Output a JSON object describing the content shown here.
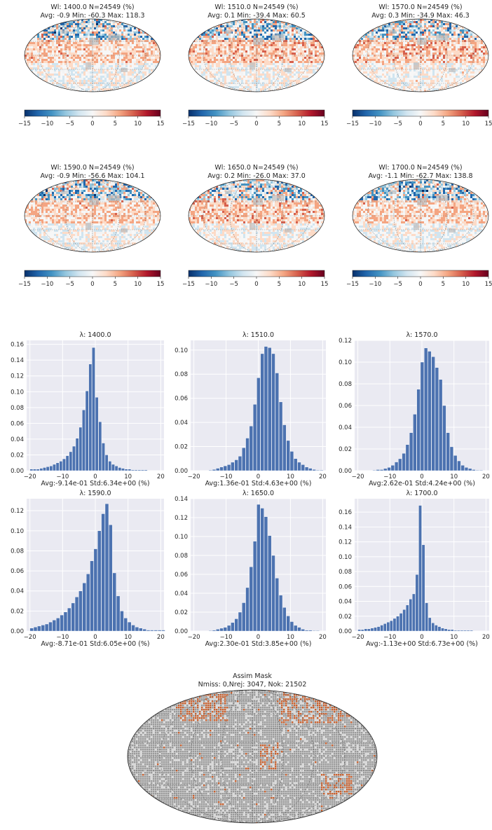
{
  "maps": [
    {
      "title_line1": "Wl: 1400.0 N=24549 (%)",
      "title_line2": "Avg: -0.9 Min: -60.3 Max: 118.3",
      "avg": -0.9,
      "min": -60.3,
      "max": 118.3
    },
    {
      "title_line1": "Wl: 1510.0 N=24549 (%)",
      "title_line2": "Avg: 0.1 Min: -39.4 Max: 60.5",
      "avg": 0.1,
      "min": -39.4,
      "max": 60.5
    },
    {
      "title_line1": "Wl: 1570.0 N=24549 (%)",
      "title_line2": "Avg: 0.3 Min: -34.9 Max: 46.3",
      "avg": 0.3,
      "min": -34.9,
      "max": 46.3
    },
    {
      "title_line1": "Wl: 1590.0 N=24549 (%)",
      "title_line2": "Avg: -0.9 Min: -56.6 Max: 104.1",
      "avg": -0.9,
      "min": -56.6,
      "max": 104.1
    },
    {
      "title_line1": "Wl: 1650.0 N=24549 (%)",
      "title_line2": "Avg: 0.2 Min: -26.0 Max: 37.0",
      "avg": 0.2,
      "min": -26.0,
      "max": 37.0
    },
    {
      "title_line1": "Wl: 1700.0 N=24549 (%)",
      "title_line2": "Avg: -1.1 Min: -62.7 Max: 138.8",
      "avg": -1.1,
      "min": -62.7,
      "max": 138.8
    }
  ],
  "colorbar": {
    "range": [
      -15,
      15
    ],
    "ticks": [
      "−15",
      "−10",
      "−5",
      "0",
      "5",
      "10",
      "15"
    ],
    "colors": [
      "#08306b",
      "#2166ac",
      "#4393c3",
      "#92c5de",
      "#d1e5f0",
      "#f7f7f7",
      "#fddbc7",
      "#f4a582",
      "#d6604d",
      "#b2182b",
      "#67001f"
    ]
  },
  "chart_data": [
    {
      "type": "bar",
      "title": "λ: 1400.0",
      "xlabel": "Avg:-9.14e-01 Std:6.34e+00 (%)",
      "xlim": [
        -21,
        21
      ],
      "ylim": [
        0,
        0.165
      ],
      "x_ticks": [
        "−20",
        "−10",
        "0",
        "10",
        "20"
      ],
      "y_ticks": [
        "0.00",
        "0.02",
        "0.04",
        "0.06",
        "0.08",
        "0.10",
        "0.12",
        "0.14",
        "0.16"
      ],
      "y_tick_values": [
        0,
        0.02,
        0.04,
        0.06,
        0.08,
        0.1,
        0.12,
        0.14,
        0.16
      ],
      "bin_start": -20,
      "bin_width": 1,
      "values": [
        0.002,
        0.002,
        0.002,
        0.003,
        0.004,
        0.005,
        0.006,
        0.008,
        0.01,
        0.012,
        0.015,
        0.019,
        0.024,
        0.031,
        0.041,
        0.055,
        0.077,
        0.101,
        0.135,
        0.156,
        0.093,
        0.062,
        0.035,
        0.02,
        0.012,
        0.008,
        0.006,
        0.004,
        0.003,
        0.002,
        0.002,
        0.001,
        0.001,
        0.001,
        0.001,
        0.001
      ]
    },
    {
      "type": "bar",
      "title": "λ: 1510.0",
      "xlabel": "Avg:1.36e-01 Std:4.63e+00 (%)",
      "xlim": [
        -21,
        21
      ],
      "ylim": [
        0,
        0.108
      ],
      "x_ticks": [
        "−20",
        "−10",
        "0",
        "10",
        "20"
      ],
      "y_ticks": [
        "0.00",
        "0.02",
        "0.04",
        "0.06",
        "0.08",
        "0.10"
      ],
      "y_tick_values": [
        0,
        0.02,
        0.04,
        0.06,
        0.08,
        0.1
      ],
      "bin_start": -20,
      "bin_width": 1.15,
      "values": [
        0.0,
        0.0,
        0.0,
        0.0,
        0.0005,
        0.001,
        0.002,
        0.003,
        0.004,
        0.005,
        0.007,
        0.009,
        0.012,
        0.019,
        0.027,
        0.037,
        0.055,
        0.077,
        0.097,
        0.103,
        0.102,
        0.097,
        0.081,
        0.057,
        0.038,
        0.025,
        0.016,
        0.01,
        0.007,
        0.005,
        0.003,
        0.002,
        0.001,
        0.0005,
        0.0005,
        0.0
      ]
    },
    {
      "type": "bar",
      "title": "λ: 1570.0",
      "xlabel": "Avg:2.62e-01 Std:4.24e+00 (%)",
      "xlim": [
        -21,
        21
      ],
      "ylim": [
        0,
        0.12
      ],
      "x_ticks": [
        "−20",
        "−10",
        "0",
        "10",
        "20"
      ],
      "y_ticks": [
        "0.00",
        "0.02",
        "0.04",
        "0.06",
        "0.08",
        "0.10",
        "0.12"
      ],
      "y_tick_values": [
        0,
        0.02,
        0.04,
        0.06,
        0.08,
        0.1,
        0.12
      ],
      "bin_start": -20,
      "bin_width": 1.15,
      "values": [
        0.0,
        0.0,
        0.0,
        0.0,
        0.0005,
        0.001,
        0.001,
        0.002,
        0.003,
        0.005,
        0.008,
        0.011,
        0.016,
        0.024,
        0.035,
        0.052,
        0.075,
        0.1,
        0.113,
        0.11,
        0.105,
        0.095,
        0.084,
        0.06,
        0.035,
        0.022,
        0.014,
        0.009,
        0.005,
        0.003,
        0.002,
        0.001,
        0.0005,
        0.0005,
        0.0,
        0.0
      ]
    },
    {
      "type": "bar",
      "title": "λ: 1590.0",
      "xlabel": "Avg:-8.71e-01 Std:6.05e+00 (%)",
      "xlim": [
        -21,
        21
      ],
      "ylim": [
        0,
        0.132
      ],
      "x_ticks": [
        "−20",
        "−10",
        "0",
        "10",
        "20"
      ],
      "y_ticks": [
        "0.00",
        "0.02",
        "0.04",
        "0.06",
        "0.08",
        "0.10",
        "0.12"
      ],
      "y_tick_values": [
        0,
        0.02,
        0.04,
        0.06,
        0.08,
        0.1,
        0.12
      ],
      "bin_start": -20,
      "bin_width": 1.15,
      "values": [
        0.003,
        0.004,
        0.005,
        0.006,
        0.007,
        0.009,
        0.011,
        0.013,
        0.016,
        0.019,
        0.023,
        0.028,
        0.034,
        0.04,
        0.048,
        0.057,
        0.07,
        0.082,
        0.1,
        0.117,
        0.127,
        0.106,
        0.058,
        0.035,
        0.02,
        0.013,
        0.009,
        0.006,
        0.004,
        0.003,
        0.002,
        0.001,
        0.001,
        0.001,
        0.001,
        0.001
      ]
    },
    {
      "type": "bar",
      "title": "λ: 1650.0",
      "xlabel": "Avg:2.30e-01 Std:3.85e+00 (%)",
      "xlim": [
        -21,
        21
      ],
      "ylim": [
        0,
        0.14
      ],
      "x_ticks": [
        "−20",
        "−10",
        "0",
        "10",
        "20"
      ],
      "y_ticks": [
        "0.00",
        "0.02",
        "0.04",
        "0.06",
        "0.08",
        "0.10",
        "0.12",
        "0.14"
      ],
      "y_tick_values": [
        0,
        0.02,
        0.04,
        0.06,
        0.08,
        0.1,
        0.12,
        0.14
      ],
      "bin_start": -20,
      "bin_width": 1.15,
      "values": [
        0.0,
        0.0,
        0.0,
        0.0,
        0.0005,
        0.001,
        0.002,
        0.003,
        0.004,
        0.006,
        0.009,
        0.013,
        0.02,
        0.03,
        0.046,
        0.068,
        0.095,
        0.134,
        0.13,
        0.121,
        0.101,
        0.08,
        0.056,
        0.038,
        0.025,
        0.016,
        0.01,
        0.006,
        0.004,
        0.002,
        0.001,
        0.001,
        0.0005,
        0.0005,
        0.0,
        0.0
      ]
    },
    {
      "type": "bar",
      "title": "λ: 1700.0",
      "xlabel": "Avg:-1.13e+00 Std:6.73e+00 (%)",
      "xlim": [
        -21,
        21
      ],
      "ylim": [
        0,
        0.178
      ],
      "x_ticks": [
        "−20",
        "−10",
        "0",
        "10",
        "20"
      ],
      "y_ticks": [
        "0.00",
        "0.02",
        "0.04",
        "0.06",
        "0.08",
        "0.10",
        "0.12",
        "0.14",
        "0.16"
      ],
      "y_tick_values": [
        0,
        0.02,
        0.04,
        0.06,
        0.08,
        0.1,
        0.12,
        0.14,
        0.16
      ],
      "bin_start": -20,
      "bin_width": 1,
      "values": [
        0.002,
        0.002,
        0.003,
        0.003,
        0.004,
        0.005,
        0.006,
        0.008,
        0.01,
        0.012,
        0.014,
        0.017,
        0.02,
        0.024,
        0.029,
        0.035,
        0.043,
        0.05,
        0.076,
        0.169,
        0.116,
        0.038,
        0.018,
        0.011,
        0.008,
        0.006,
        0.004,
        0.003,
        0.002,
        0.002,
        0.001,
        0.001,
        0.001,
        0.001,
        0.001,
        0.001
      ]
    }
  ],
  "mask": {
    "title_line1": "Assim Mask",
    "title_line2": "Nmiss: 0,Nrej: 3047, Nok: 21502",
    "nmiss": 0,
    "nrej": 3047,
    "nok": 21502,
    "ok_color": "#9a9a9a",
    "rej_color": "#c8602e",
    "land_color": "#d9d9d9"
  }
}
